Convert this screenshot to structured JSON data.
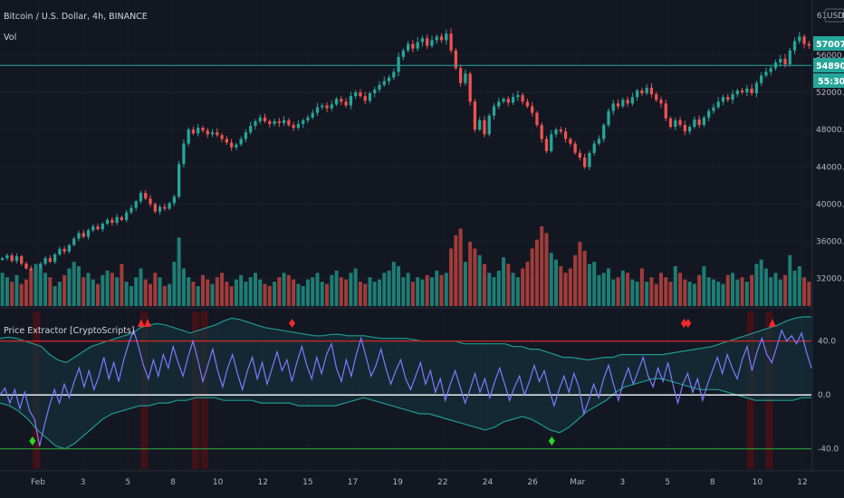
{
  "header": {
    "symbol_title": "Bitcoin / U.S. Dollar, 4h, BINANCE",
    "volume_label": "Vol",
    "indicator_title": "Price Extractor [CryptoScripts]"
  },
  "top_controls": {
    "currency": "USD",
    "settings_glyph": "⚙",
    "counter": "61"
  },
  "price_badges": {
    "current_price": "57007.78",
    "level_price": "54890.98",
    "countdown": "55:30"
  },
  "colors": {
    "background": "#131722",
    "up": "#26a69a",
    "down": "#ef5350",
    "up_volume": "#1e7d74",
    "down_volume": "#a13c3a",
    "oscillator_line": "#7b7bff",
    "band": "#1e9a8f",
    "band_fill": "#16313a",
    "upper_threshold": "#c62828",
    "lower_threshold": "#2e9d3a",
    "zero_line": "#ffffff",
    "signal_column": "#4a1016"
  },
  "chart_data": [
    {
      "type": "candlestick",
      "name": "BTCUSD 4h",
      "x_tick_labels": [
        "Feb",
        "3",
        "5",
        "8",
        "10",
        "12",
        "15",
        "17",
        "19",
        "22",
        "24",
        "26",
        "Mar",
        "3",
        "5",
        "8",
        "10",
        "12"
      ],
      "y_tick_labels": [
        "32000.00",
        "36000.00",
        "40000.00",
        "44000.00",
        "48000.00",
        "52000.00",
        "56000.00"
      ],
      "ylim": [
        31000,
        59000
      ],
      "horizontal_level": 54890.98,
      "last_price": 57007.78,
      "closes": [
        34200,
        34500,
        33900,
        34400,
        33600,
        33100,
        32400,
        32900,
        33600,
        34200,
        33800,
        34600,
        35200,
        34900,
        35600,
        36300,
        36900,
        36500,
        37200,
        37600,
        37300,
        37900,
        38300,
        38000,
        38600,
        38300,
        39100,
        39600,
        40300,
        41200,
        40600,
        40000,
        39200,
        39700,
        39500,
        40100,
        40800,
        44300,
        46500,
        48000,
        47600,
        48200,
        47900,
        47500,
        47700,
        47400,
        47000,
        46600,
        46100,
        46400,
        47000,
        47700,
        48400,
        48900,
        49300,
        48900,
        48600,
        48900,
        48700,
        49000,
        48500,
        48200,
        48600,
        49000,
        49300,
        49800,
        50400,
        50600,
        50300,
        50700,
        51300,
        51000,
        50600,
        51600,
        52000,
        51600,
        51100,
        51900,
        52300,
        52800,
        53200,
        53600,
        54200,
        55800,
        56500,
        57200,
        56700,
        57400,
        57800,
        57000,
        57600,
        58000,
        57600,
        58300,
        56500,
        54600,
        53000,
        54000,
        51000,
        48000,
        49000,
        47500,
        49500,
        50500,
        51000,
        51300,
        50900,
        51500,
        51700,
        51000,
        50500,
        49800,
        48500,
        47000,
        45700,
        47500,
        48000,
        47800,
        47000,
        46500,
        45500,
        45000,
        44000,
        45500,
        46500,
        47000,
        48500,
        50000,
        50800,
        50500,
        51200,
        50800,
        51500,
        52200,
        51900,
        52500,
        51800,
        51200,
        50800,
        49200,
        48300,
        49000,
        48500,
        47800,
        48300,
        49100,
        48500,
        49300,
        50000,
        50400,
        51000,
        51500,
        51200,
        51800,
        52200,
        52000,
        52400,
        51900,
        53000,
        53800,
        54200,
        54600,
        55200,
        55600,
        55000,
        56500,
        57500,
        58000,
        57200,
        57007.78
      ]
    },
    {
      "type": "bar",
      "name": "Vol",
      "values": [
        30,
        26,
        22,
        28,
        20,
        24,
        32,
        38,
        34,
        30,
        26,
        18,
        22,
        28,
        34,
        40,
        36,
        26,
        30,
        24,
        20,
        28,
        32,
        30,
        26,
        38,
        22,
        18,
        26,
        34,
        24,
        20,
        30,
        26,
        18,
        20,
        40,
        62,
        34,
        26,
        22,
        18,
        28,
        24,
        20,
        26,
        30,
        22,
        18,
        24,
        28,
        22,
        26,
        30,
        24,
        20,
        18,
        22,
        26,
        30,
        28,
        24,
        20,
        18,
        24,
        26,
        30,
        22,
        20,
        28,
        32,
        26,
        24,
        30,
        34,
        22,
        20,
        26,
        22,
        24,
        30,
        32,
        40,
        36,
        26,
        30,
        22,
        26,
        24,
        28,
        26,
        32,
        28,
        30,
        52,
        64,
        70,
        40,
        58,
        52,
        46,
        38,
        30,
        26,
        32,
        44,
        38,
        30,
        26,
        34,
        40,
        52,
        60,
        72,
        66,
        48,
        42,
        36,
        30,
        34,
        46,
        58,
        50,
        38,
        40,
        28,
        30,
        34,
        24,
        26,
        32,
        30,
        24,
        22,
        34,
        22,
        26,
        20,
        30,
        26,
        22,
        36,
        30,
        24,
        22,
        20,
        28,
        36,
        26,
        24,
        22,
        20,
        28,
        30,
        24,
        26,
        22,
        28,
        38,
        42,
        34,
        26,
        30,
        24,
        28,
        46,
        32,
        36,
        26,
        22
      ]
    },
    {
      "type": "line",
      "name": "Price Extractor [CryptoScripts]",
      "y_tick_labels": [
        "40.0",
        "0.0",
        "-40.0"
      ],
      "ylim": [
        -55,
        62
      ],
      "upper_threshold": 40,
      "zero_line": 0,
      "lower_threshold": -40,
      "values": [
        0,
        5,
        -6,
        4,
        -10,
        2,
        -12,
        -18,
        -38,
        -22,
        -8,
        4,
        -6,
        8,
        -2,
        10,
        20,
        6,
        18,
        4,
        14,
        28,
        12,
        24,
        10,
        26,
        38,
        48,
        36,
        22,
        12,
        26,
        14,
        30,
        20,
        36,
        24,
        14,
        28,
        40,
        26,
        10,
        22,
        34,
        18,
        6,
        20,
        30,
        16,
        4,
        18,
        28,
        12,
        24,
        8,
        20,
        32,
        18,
        26,
        10,
        24,
        36,
        22,
        12,
        28,
        16,
        30,
        38,
        20,
        10,
        26,
        14,
        30,
        42,
        28,
        14,
        22,
        34,
        20,
        8,
        18,
        26,
        12,
        4,
        14,
        24,
        8,
        18,
        2,
        12,
        -4,
        8,
        18,
        6,
        -6,
        4,
        16,
        2,
        12,
        -2,
        10,
        20,
        8,
        -4,
        6,
        14,
        0,
        10,
        22,
        10,
        18,
        4,
        -8,
        4,
        14,
        2,
        16,
        6,
        -14,
        -4,
        8,
        -2,
        12,
        22,
        8,
        -4,
        10,
        20,
        8,
        18,
        28,
        14,
        6,
        20,
        10,
        24,
        8,
        -6,
        8,
        16,
        2,
        12,
        -4,
        8,
        18,
        28,
        16,
        30,
        20,
        12,
        26,
        36,
        18,
        32,
        42,
        30,
        24,
        36,
        48,
        40,
        44,
        38,
        46,
        32,
        20
      ],
      "upper_band": [
        42,
        43,
        42,
        40,
        38,
        36,
        30,
        26,
        24,
        28,
        32,
        36,
        38,
        40,
        42,
        44,
        46,
        50,
        52,
        53,
        52,
        50,
        48,
        46,
        48,
        50,
        52,
        55,
        57,
        56,
        54,
        52,
        50,
        49,
        48,
        47,
        46,
        45,
        44,
        44,
        45,
        45,
        44,
        44,
        44,
        43,
        42,
        42,
        42,
        42,
        41,
        40,
        40,
        40,
        40,
        40,
        38,
        38,
        38,
        38,
        38,
        38,
        36,
        36,
        34,
        34,
        32,
        30,
        28,
        28,
        27,
        26,
        27,
        28,
        28,
        30,
        30,
        30,
        30,
        30,
        30,
        31,
        32,
        33,
        34,
        35,
        36,
        38,
        40,
        42,
        44,
        46,
        48,
        50,
        52,
        55,
        57,
        58,
        58
      ],
      "lower_band": [
        -6,
        -8,
        -12,
        -18,
        -26,
        -32,
        -38,
        -40,
        -36,
        -30,
        -24,
        -18,
        -14,
        -12,
        -10,
        -8,
        -8,
        -6,
        -6,
        -4,
        -4,
        -2,
        -2,
        -2,
        -4,
        -4,
        -4,
        -4,
        -6,
        -6,
        -6,
        -6,
        -8,
        -8,
        -8,
        -8,
        -8,
        -6,
        -4,
        -2,
        -4,
        -6,
        -8,
        -10,
        -12,
        -14,
        -14,
        -16,
        -18,
        -20,
        -22,
        -24,
        -26,
        -24,
        -20,
        -18,
        -16,
        -18,
        -22,
        -26,
        -28,
        -24,
        -18,
        -12,
        -8,
        -4,
        2,
        6,
        8,
        10,
        12,
        12,
        10,
        8,
        6,
        4,
        4,
        4,
        2,
        0,
        -2,
        -4,
        -4,
        -4,
        -4,
        -4,
        -2,
        -2
      ],
      "signal_columns_x_fraction": [
        0.045,
        0.178,
        0.241,
        0.252,
        0.925,
        0.948
      ],
      "shape_markers": [
        {
          "shape": "diamond",
          "color": "#26d926",
          "position": "bottom",
          "x_fraction": 0.04
        },
        {
          "shape": "diamond",
          "color": "#26d926",
          "position": "bottom",
          "x_fraction": 0.68
        },
        {
          "shape": "diamond",
          "color": "#ef2b2b",
          "position": "top",
          "x_fraction": 0.36
        },
        {
          "shape": "diamond",
          "color": "#ef2b2b",
          "position": "top",
          "x_fraction": 0.843
        },
        {
          "shape": "diamond",
          "color": "#ef2b2b",
          "position": "top",
          "x_fraction": 0.848
        },
        {
          "shape": "triangle",
          "color": "#ef2b2b",
          "position": "top",
          "x_fraction": 0.174
        },
        {
          "shape": "triangle",
          "color": "#ef2b2b",
          "position": "top",
          "x_fraction": 0.182
        },
        {
          "shape": "triangle",
          "color": "#ef2b2b",
          "position": "top",
          "x_fraction": 0.952
        }
      ]
    }
  ]
}
